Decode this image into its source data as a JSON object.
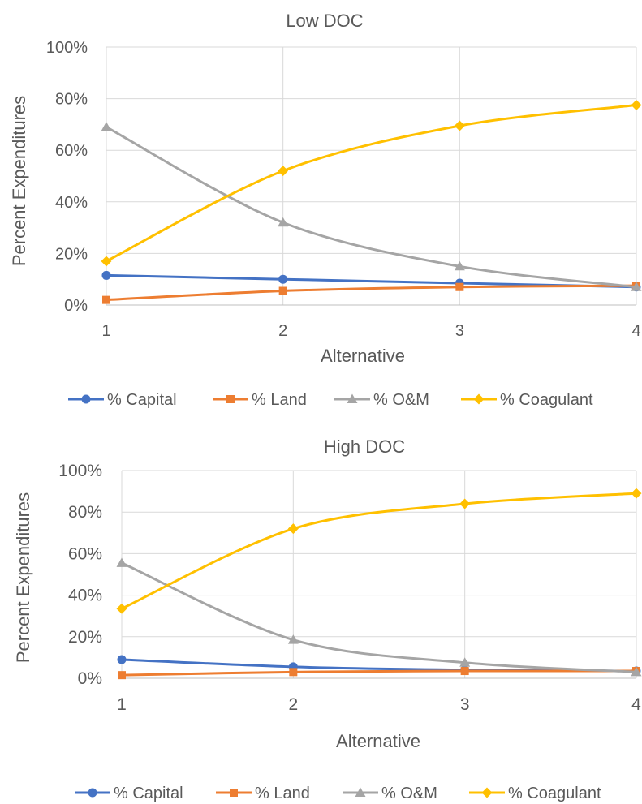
{
  "chart_data": [
    {
      "type": "line",
      "title": "Low DOC",
      "xlabel": "Alternative",
      "ylabel": "Percent Expenditures",
      "x": [
        1,
        2,
        3,
        4
      ],
      "x_tick_labels": [
        "1",
        "2",
        "3",
        "4"
      ],
      "ylim": [
        0,
        100
      ],
      "y_tick_labels": [
        "0%",
        "20%",
        "40%",
        "60%",
        "80%",
        "100%"
      ],
      "grid": true,
      "legend_position": "bottom",
      "series": [
        {
          "name": "% Capital",
          "marker": "circle",
          "color": "#4472C4",
          "values": [
            11.5,
            10.0,
            8.5,
            7.0
          ]
        },
        {
          "name": "% Land",
          "marker": "square",
          "color": "#ED7D31",
          "values": [
            2.0,
            5.5,
            7.0,
            7.5
          ]
        },
        {
          "name": "% O&M",
          "marker": "triangle",
          "color": "#A5A5A5",
          "values": [
            69.0,
            32.0,
            15.0,
            7.0
          ]
        },
        {
          "name": "% Coagulant",
          "marker": "diamond",
          "color": "#FFC000",
          "values": [
            17.0,
            52.0,
            69.5,
            77.5
          ]
        }
      ]
    },
    {
      "type": "line",
      "title": "High DOC",
      "xlabel": "Alternative",
      "ylabel": "Percent  Expenditures",
      "x": [
        1,
        2,
        3,
        4
      ],
      "x_tick_labels": [
        "1",
        "2",
        "3",
        "4"
      ],
      "ylim": [
        0,
        100
      ],
      "y_tick_labels": [
        "0%",
        "20%",
        "40%",
        "60%",
        "80%",
        "100%"
      ],
      "grid": true,
      "legend_position": "bottom",
      "series": [
        {
          "name": "% Capital",
          "marker": "circle",
          "color": "#4472C4",
          "values": [
            9.0,
            5.5,
            4.0,
            3.5
          ]
        },
        {
          "name": "% Land",
          "marker": "square",
          "color": "#ED7D31",
          "values": [
            1.5,
            3.0,
            3.5,
            3.5
          ]
        },
        {
          "name": "% O&M",
          "marker": "triangle",
          "color": "#A5A5A5",
          "values": [
            55.5,
            18.5,
            7.5,
            3.0
          ]
        },
        {
          "name": "% Coagulant",
          "marker": "diamond",
          "color": "#FFC000",
          "values": [
            33.5,
            72.0,
            84.0,
            89.0
          ]
        }
      ]
    }
  ]
}
